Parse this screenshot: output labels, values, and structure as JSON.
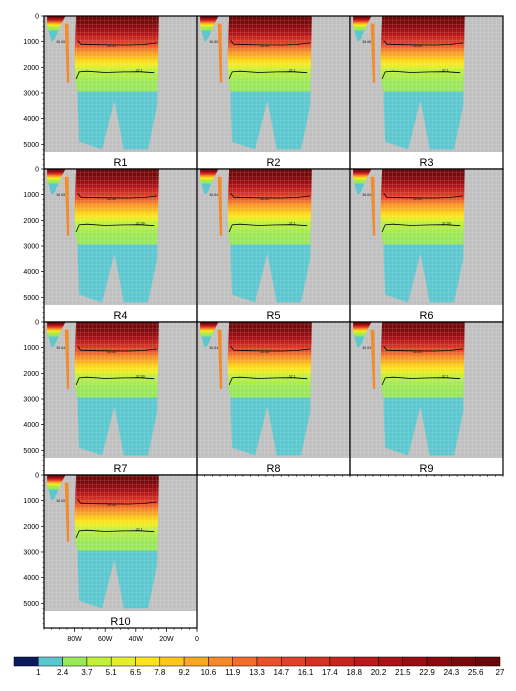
{
  "chart_data": {
    "type": "heatmap",
    "panels": [
      "R1",
      "R2",
      "R3",
      "R4",
      "R5",
      "R6",
      "R7",
      "R8",
      "R9",
      "R10"
    ],
    "contour_labels": [
      [
        "36.65",
        "36.54",
        "37.1"
      ],
      [
        "36.55",
        "36.55",
        "37.1"
      ],
      [
        "36.66",
        "36.56",
        "37.1"
      ],
      [
        "36.65",
        "36.56",
        "37.09"
      ],
      [
        "36.54",
        "36.54",
        "37.1"
      ],
      [
        "36.64",
        "36.54",
        "37.09"
      ],
      [
        "36.64",
        "36.54",
        "37.09"
      ],
      [
        "36.64",
        "36.56",
        "37.1"
      ],
      [
        "36.64",
        "36.54",
        "37.1"
      ],
      [
        "36.65",
        "36.55",
        "37.1"
      ]
    ],
    "y_ticks": [
      "0",
      "1000",
      "2000",
      "3000",
      "4000",
      "5000"
    ],
    "y_tick_values": [
      0,
      1000,
      2000,
      3000,
      4000,
      5000
    ],
    "y_range": [
      0,
      5300
    ],
    "x_ticks": [
      "80W",
      "60W",
      "40W",
      "20W",
      "0"
    ],
    "x_tick_values": [
      -80,
      -60,
      -40,
      -20,
      0
    ],
    "x_range": [
      -100,
      0
    ],
    "colorbar": {
      "labels": [
        "1",
        "2.4",
        "3.7",
        "5.1",
        "6.5",
        "7.8",
        "9.2",
        "10.6",
        "11.9",
        "13.3",
        "14.7",
        "16.1",
        "17.4",
        "18.8",
        "20.2",
        "21.5",
        "22.9",
        "24.3",
        "25.6",
        "27"
      ],
      "colors": [
        "#0c1a5e",
        "#5cc7cf",
        "#9ae75a",
        "#c1f03a",
        "#e5ee28",
        "#fbe41c",
        "#fbc817",
        "#f9a824",
        "#f58a2a",
        "#f06c2f",
        "#e8522a",
        "#de4028",
        "#d33122",
        "#c7251f",
        "#b8191b",
        "#a91316",
        "#990e12",
        "#890a0f",
        "#790a0c",
        "#6a0909"
      ]
    },
    "missing_color": "#c0c0c0",
    "grid": true
  }
}
